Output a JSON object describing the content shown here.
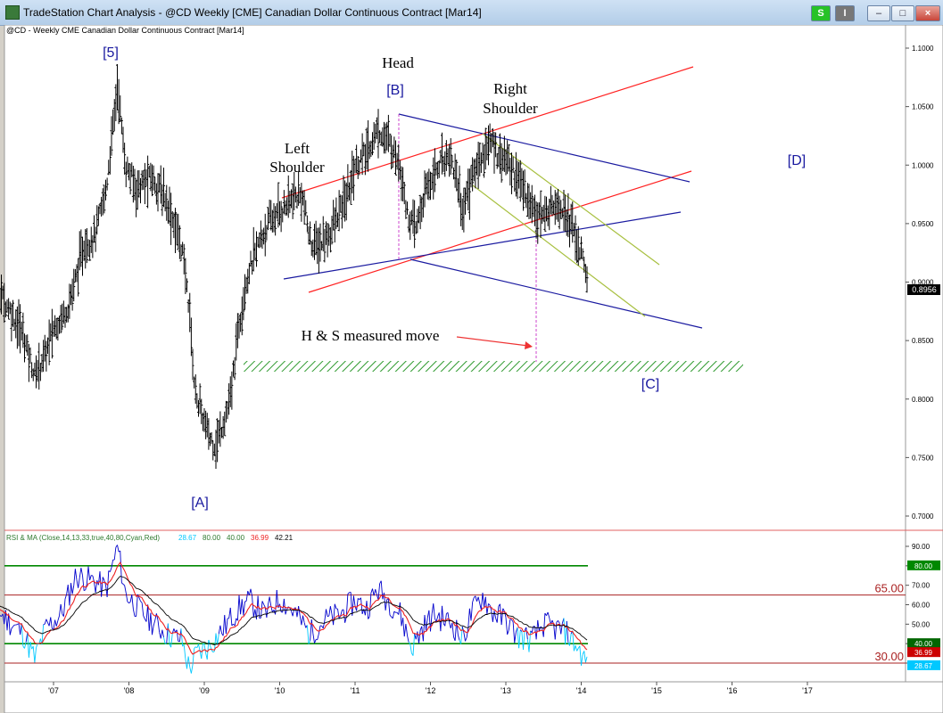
{
  "window": {
    "title": "TradeStation Chart Analysis - @CD Weekly [CME] Canadian Dollar Continuous Contract [Mar14]",
    "buttons": {
      "s_label": "S",
      "i_label": "I",
      "min_label": "–",
      "max_label": "□",
      "close_label": "×"
    }
  },
  "chart_header": "@CD - Weekly  CME  Canadian Dollar Continuous Contract [Mar14]",
  "colors": {
    "background": "#ffffff",
    "price_bars": "#000000",
    "channel_red": "#ff2020",
    "trend_blue": "#1a1aa0",
    "olive": "#a8c040",
    "green_support": "#2e9a2e",
    "magenta_dashed": "#cc44cc",
    "rsi_blue": "#0000cc",
    "rsi_cyan": "#00c8ff",
    "ma_red": "#ee2222",
    "ma_black": "#000000",
    "level_red": "#aa2222",
    "level_green": "#008800"
  },
  "chart_data": [
    {
      "type": "line",
      "panel": "price",
      "style": "ohlc-bars",
      "ylim": [
        0.68,
        1.12
      ],
      "yticks": [
        1.1,
        1.05,
        1.0,
        0.95,
        0.9,
        0.85,
        0.8,
        0.75,
        0.7
      ],
      "ytick_labels": [
        "1.1000",
        "1.0500",
        "1.0000",
        "0.9500",
        "0.9000",
        "0.8500",
        "0.8000",
        "0.7500",
        "0.7000"
      ],
      "last_price_label": "0.8956",
      "x_labels": [
        "'07",
        "'08",
        "'09",
        "'10",
        "'11",
        "'12",
        "'13",
        "'14",
        "'15",
        "'16",
        "'17"
      ],
      "x_range": [
        2006.0,
        2017.8
      ],
      "series": [
        {
          "points": [
            [
              2006.0,
              0.88
            ],
            [
              2006.3,
              0.89
            ],
            [
              2006.6,
              0.855
            ],
            [
              2006.75,
              0.82
            ],
            [
              2006.9,
              0.84
            ],
            [
              2007.0,
              0.86
            ],
            [
              2007.2,
              0.88
            ],
            [
              2007.4,
              0.93
            ],
            [
              2007.55,
              0.94
            ],
            [
              2007.7,
              0.98
            ],
            [
              2007.85,
              1.07
            ],
            [
              2007.95,
              1.0
            ],
            [
              2008.1,
              0.98
            ],
            [
              2008.3,
              0.99
            ],
            [
              2008.5,
              0.97
            ],
            [
              2008.7,
              0.93
            ],
            [
              2008.8,
              0.88
            ],
            [
              2008.87,
              0.81
            ],
            [
              2008.95,
              0.79
            ],
            [
              2009.05,
              0.77
            ],
            [
              2009.15,
              0.76
            ],
            [
              2009.25,
              0.78
            ],
            [
              2009.35,
              0.8
            ],
            [
              2009.45,
              0.86
            ],
            [
              2009.55,
              0.9
            ],
            [
              2009.7,
              0.93
            ],
            [
              2009.85,
              0.95
            ],
            [
              2010.0,
              0.96
            ],
            [
              2010.15,
              0.97
            ],
            [
              2010.3,
              0.975
            ],
            [
              2010.4,
              0.935
            ],
            [
              2010.5,
              0.93
            ],
            [
              2010.65,
              0.94
            ],
            [
              2010.8,
              0.96
            ],
            [
              2010.9,
              0.975
            ],
            [
              2011.0,
              1.0
            ],
            [
              2011.15,
              1.01
            ],
            [
              2011.3,
              1.03
            ],
            [
              2011.45,
              1.02
            ],
            [
              2011.6,
              1.0
            ],
            [
              2011.7,
              0.955
            ],
            [
              2011.8,
              0.945
            ],
            [
              2011.95,
              0.98
            ],
            [
              2012.1,
              1.0
            ],
            [
              2012.25,
              1.01
            ],
            [
              2012.35,
              0.99
            ],
            [
              2012.42,
              0.96
            ],
            [
              2012.55,
              0.99
            ],
            [
              2012.7,
              1.01
            ],
            [
              2012.8,
              1.02
            ],
            [
              2012.9,
              1.01
            ],
            [
              2013.0,
              1.005
            ],
            [
              2013.15,
              0.99
            ],
            [
              2013.35,
              0.965
            ],
            [
              2013.5,
              0.955
            ],
            [
              2013.65,
              0.97
            ],
            [
              2013.8,
              0.96
            ],
            [
              2013.95,
              0.935
            ],
            [
              2014.05,
              0.91
            ],
            [
              2014.09,
              0.8956
            ]
          ]
        }
      ]
    },
    {
      "type": "line",
      "panel": "indicator",
      "header": "RSI & MA (Close,14,13,33,true,40,80,Cyan,Red)",
      "header_values": [
        "28.67",
        "80.00",
        "40.00",
        "36.99",
        "42.21"
      ],
      "ylim": [
        20,
        95
      ],
      "yticks": [
        90,
        80,
        70,
        60,
        50,
        40,
        30
      ],
      "ytick_labels": [
        "90.00",
        "80.00",
        "70.00",
        "60.00",
        "50.00",
        "40.00",
        "30.00"
      ],
      "levels": [
        {
          "value": 80,
          "label": "80.00",
          "style": "green"
        },
        {
          "value": 65,
          "label": "65.00",
          "style": "red"
        },
        {
          "value": 40,
          "label": "40.00",
          "style": "green"
        },
        {
          "value": 30,
          "label": "30.00",
          "style": "red"
        }
      ],
      "right_badges": [
        "80.00",
        "40.00",
        "36.99",
        "28.67"
      ],
      "series": [
        {
          "points": [
            [
              2006.0,
              60
            ],
            [
              2006.3,
              55
            ],
            [
              2006.6,
              45
            ],
            [
              2006.75,
              32
            ],
            [
              2006.9,
              48
            ],
            [
              2007.1,
              55
            ],
            [
              2007.3,
              75
            ],
            [
              2007.55,
              72
            ],
            [
              2007.7,
              68
            ],
            [
              2007.85,
              90
            ],
            [
              2007.95,
              66
            ],
            [
              2008.2,
              55
            ],
            [
              2008.5,
              45
            ],
            [
              2008.7,
              42
            ],
            [
              2008.8,
              27
            ],
            [
              2008.9,
              35
            ],
            [
              2009.05,
              38
            ],
            [
              2009.2,
              45
            ],
            [
              2009.45,
              58
            ],
            [
              2009.6,
              62
            ],
            [
              2009.8,
              55
            ],
            [
              2010.0,
              63
            ],
            [
              2010.2,
              56
            ],
            [
              2010.4,
              45
            ],
            [
              2010.6,
              52
            ],
            [
              2010.8,
              55
            ],
            [
              2011.0,
              62
            ],
            [
              2011.15,
              58
            ],
            [
              2011.3,
              68
            ],
            [
              2011.45,
              62
            ],
            [
              2011.6,
              55
            ],
            [
              2011.75,
              38
            ],
            [
              2011.9,
              48
            ],
            [
              2012.05,
              55
            ],
            [
              2012.3,
              50
            ],
            [
              2012.42,
              42
            ],
            [
              2012.55,
              56
            ],
            [
              2012.7,
              65
            ],
            [
              2012.8,
              57
            ],
            [
              2013.0,
              52
            ],
            [
              2013.15,
              44
            ],
            [
              2013.35,
              42
            ],
            [
              2013.5,
              50
            ],
            [
              2013.65,
              48
            ],
            [
              2013.8,
              46
            ],
            [
              2013.95,
              38
            ],
            [
              2014.09,
              28.67
            ]
          ]
        }
      ]
    }
  ],
  "annotations": {
    "wave_5": "[5]",
    "wave_a": "[A]",
    "wave_b": "[B]",
    "wave_c": "[C]",
    "wave_d": "[D]",
    "head": "Head",
    "left_shoulder_1": "Left",
    "left_shoulder_2": "Shoulder",
    "right_shoulder_1": "Right",
    "right_shoulder_2": "Shoulder",
    "measured_move": "H & S measured move"
  }
}
